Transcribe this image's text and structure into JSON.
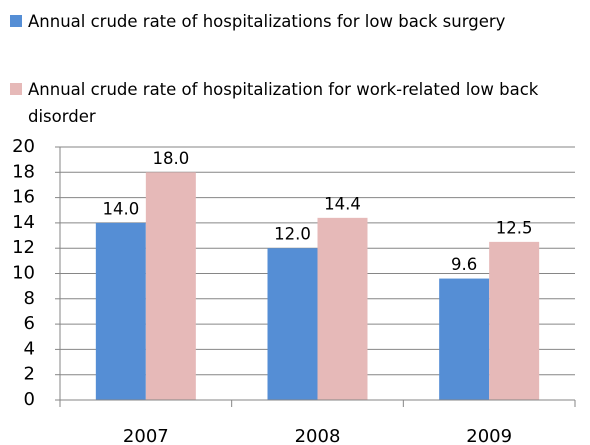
{
  "chart_data": {
    "type": "bar",
    "categories": [
      "2007",
      "2008",
      "2009"
    ],
    "series": [
      {
        "name": "Annual crude rate of hospitalizations for low back surgery",
        "color": "#558ed5",
        "values": [
          14,
          12,
          9.6
        ],
        "value_labels": [
          "14.0",
          "12.0",
          "9.6"
        ]
      },
      {
        "name": "Annual crude rate of hospitalization for work-related low back disorder",
        "color": "#e6b9b8",
        "values": [
          18,
          14.4,
          12.5
        ],
        "value_labels": [
          "18.0",
          "14.4",
          "12.5"
        ]
      }
    ],
    "ylim": [
      0,
      20
    ],
    "yticks": [
      0,
      2,
      4,
      6,
      8,
      10,
      12,
      14,
      16,
      18,
      20
    ],
    "grid": true
  }
}
